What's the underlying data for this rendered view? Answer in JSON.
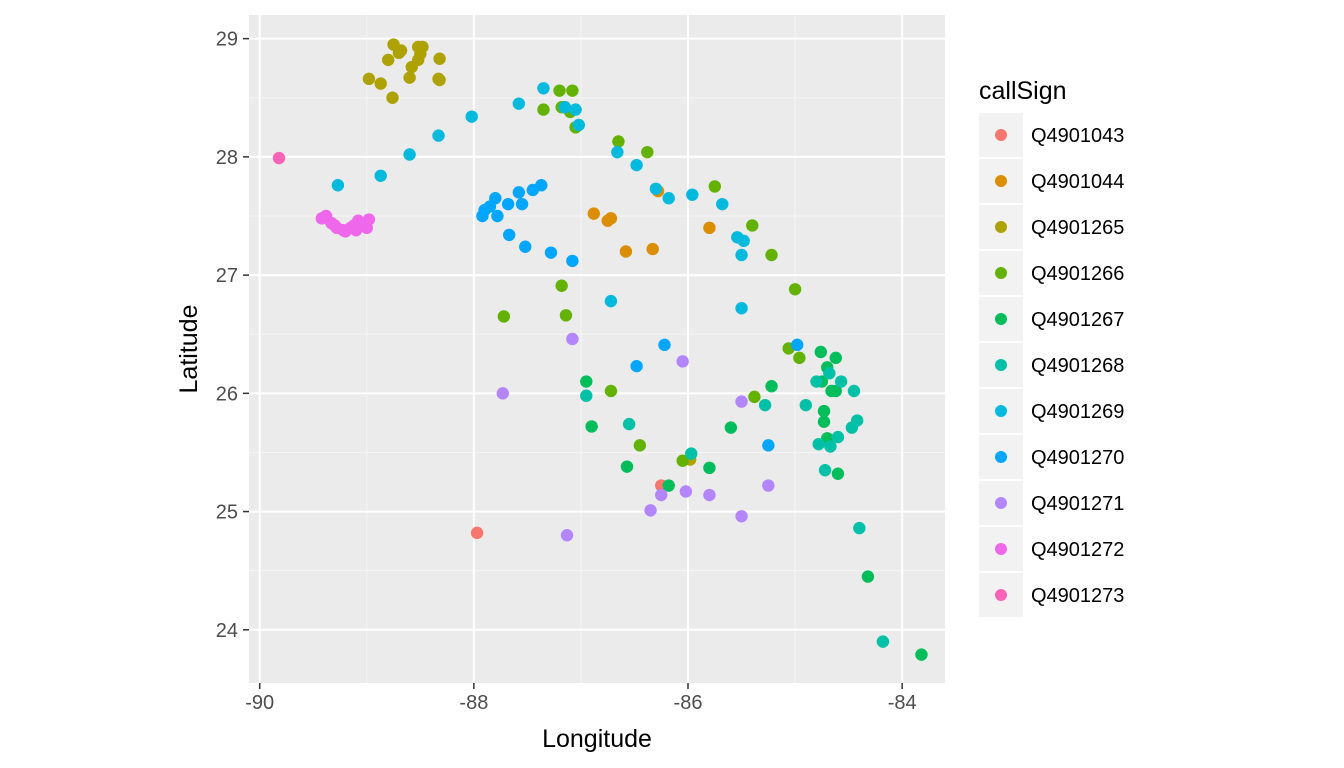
{
  "chart_data": {
    "type": "scatter",
    "xlabel": "Longitude",
    "ylabel": "Latitude",
    "xlim": [
      -90.1,
      -83.6
    ],
    "ylim": [
      23.55,
      29.2
    ],
    "x_ticks": [
      -90,
      -88,
      -86,
      -84
    ],
    "y_ticks": [
      24,
      25,
      26,
      27,
      28,
      29
    ],
    "x_tick_labels": [
      "-90",
      "-88",
      "-86",
      "-84"
    ],
    "y_tick_labels": [
      "24",
      "25",
      "26",
      "27",
      "28",
      "29"
    ],
    "grid": true,
    "panel_background": "#ebebeb",
    "legend": {
      "title": "callSign",
      "position": "right"
    },
    "series": [
      {
        "name": "Q4901043",
        "color": "#F8766D",
        "points": [
          [
            -87.97,
            24.82
          ],
          [
            -86.25,
            25.22
          ]
        ]
      },
      {
        "name": "Q4901044",
        "color": "#DB8E00",
        "points": [
          [
            -86.88,
            27.52
          ],
          [
            -86.75,
            27.46
          ],
          [
            -86.72,
            27.48
          ],
          [
            -86.58,
            27.2
          ],
          [
            -86.33,
            27.22
          ],
          [
            -86.28,
            27.71
          ],
          [
            -85.8,
            27.4
          ]
        ]
      },
      {
        "name": "Q4901265",
        "color": "#AEA200",
        "points": [
          [
            -88.75,
            28.95
          ],
          [
            -88.68,
            28.9
          ],
          [
            -88.7,
            28.88
          ],
          [
            -88.52,
            28.93
          ],
          [
            -88.48,
            28.93
          ],
          [
            -88.5,
            28.87
          ],
          [
            -88.52,
            28.82
          ],
          [
            -88.58,
            28.76
          ],
          [
            -88.6,
            28.67
          ],
          [
            -88.32,
            28.83
          ],
          [
            -88.33,
            28.66
          ],
          [
            -88.32,
            28.65
          ],
          [
            -88.8,
            28.82
          ],
          [
            -88.87,
            28.62
          ],
          [
            -88.98,
            28.66
          ],
          [
            -88.76,
            28.5
          ],
          [
            -85.98,
            25.44
          ]
        ]
      },
      {
        "name": "Q4901266",
        "color": "#64B200",
        "points": [
          [
            -87.2,
            28.56
          ],
          [
            -87.08,
            28.56
          ],
          [
            -87.18,
            28.42
          ],
          [
            -87.15,
            28.42
          ],
          [
            -87.1,
            28.38
          ],
          [
            -87.35,
            28.4
          ],
          [
            -87.05,
            28.25
          ],
          [
            -86.65,
            28.13
          ],
          [
            -86.38,
            28.04
          ],
          [
            -85.75,
            27.75
          ],
          [
            -85.4,
            27.42
          ],
          [
            -85.22,
            27.17
          ],
          [
            -85.0,
            26.88
          ],
          [
            -85.06,
            26.38
          ],
          [
            -84.96,
            26.3
          ],
          [
            -87.18,
            26.91
          ],
          [
            -87.14,
            26.66
          ],
          [
            -87.72,
            26.65
          ],
          [
            -86.72,
            26.02
          ],
          [
            -85.38,
            25.97
          ],
          [
            -86.45,
            25.56
          ],
          [
            -86.05,
            25.43
          ]
        ]
      },
      {
        "name": "Q4901267",
        "color": "#00BD5C",
        "points": [
          [
            -84.76,
            26.35
          ],
          [
            -84.62,
            26.3
          ],
          [
            -84.7,
            26.22
          ],
          [
            -84.75,
            26.1
          ],
          [
            -84.62,
            26.02
          ],
          [
            -84.66,
            26.02
          ],
          [
            -84.73,
            25.85
          ],
          [
            -84.73,
            25.76
          ],
          [
            -84.7,
            25.62
          ],
          [
            -84.6,
            25.32
          ],
          [
            -86.95,
            26.1
          ],
          [
            -86.9,
            25.72
          ],
          [
            -85.6,
            25.71
          ],
          [
            -85.8,
            25.37
          ],
          [
            -86.57,
            25.38
          ],
          [
            -86.18,
            25.22
          ],
          [
            -84.32,
            24.45
          ],
          [
            -83.82,
            23.79
          ],
          [
            -85.22,
            26.06
          ]
        ]
      },
      {
        "name": "Q4901268",
        "color": "#00C1A7",
        "points": [
          [
            -84.68,
            26.17
          ],
          [
            -84.57,
            26.1
          ],
          [
            -84.45,
            26.02
          ],
          [
            -84.8,
            26.1
          ],
          [
            -84.9,
            25.9
          ],
          [
            -85.28,
            25.9
          ],
          [
            -84.78,
            25.57
          ],
          [
            -84.67,
            25.55
          ],
          [
            -84.6,
            25.63
          ],
          [
            -84.47,
            25.71
          ],
          [
            -84.42,
            25.77
          ],
          [
            -84.72,
            25.35
          ],
          [
            -84.4,
            24.86
          ],
          [
            -84.18,
            23.9
          ],
          [
            -86.55,
            25.74
          ],
          [
            -86.95,
            25.98
          ],
          [
            -85.97,
            25.49
          ]
        ]
      },
      {
        "name": "Q4901269",
        "color": "#00BADE",
        "points": [
          [
            -87.35,
            28.58
          ],
          [
            -87.15,
            28.42
          ],
          [
            -87.05,
            28.4
          ],
          [
            -87.02,
            28.27
          ],
          [
            -87.58,
            28.45
          ],
          [
            -88.02,
            28.34
          ],
          [
            -88.33,
            28.18
          ],
          [
            -88.6,
            28.02
          ],
          [
            -88.87,
            27.84
          ],
          [
            -89.27,
            27.76
          ],
          [
            -86.66,
            28.04
          ],
          [
            -86.48,
            27.93
          ],
          [
            -86.3,
            27.73
          ],
          [
            -86.18,
            27.65
          ],
          [
            -85.96,
            27.68
          ],
          [
            -85.68,
            27.6
          ],
          [
            -85.54,
            27.32
          ],
          [
            -85.48,
            27.29
          ],
          [
            -85.5,
            27.17
          ],
          [
            -85.5,
            26.72
          ],
          [
            -86.72,
            26.78
          ]
        ]
      },
      {
        "name": "Q4901270",
        "color": "#00A6FF",
        "points": [
          [
            -87.92,
            27.5
          ],
          [
            -87.9,
            27.55
          ],
          [
            -87.85,
            27.58
          ],
          [
            -87.8,
            27.65
          ],
          [
            -87.78,
            27.5
          ],
          [
            -87.68,
            27.6
          ],
          [
            -87.58,
            27.7
          ],
          [
            -87.55,
            27.6
          ],
          [
            -87.45,
            27.72
          ],
          [
            -87.37,
            27.76
          ],
          [
            -87.67,
            27.34
          ],
          [
            -87.52,
            27.24
          ],
          [
            -87.28,
            27.19
          ],
          [
            -87.08,
            27.12
          ],
          [
            -86.48,
            26.23
          ],
          [
            -86.22,
            26.41
          ],
          [
            -84.98,
            26.41
          ],
          [
            -85.25,
            25.56
          ]
        ]
      },
      {
        "name": "Q4901271",
        "color": "#B385FF",
        "points": [
          [
            -87.08,
            26.46
          ],
          [
            -87.73,
            26.0
          ],
          [
            -86.05,
            26.27
          ],
          [
            -85.5,
            25.93
          ],
          [
            -86.25,
            25.14
          ],
          [
            -86.02,
            25.17
          ],
          [
            -85.8,
            25.14
          ],
          [
            -86.35,
            25.01
          ],
          [
            -85.5,
            24.96
          ],
          [
            -85.25,
            25.22
          ],
          [
            -87.13,
            24.8
          ]
        ]
      },
      {
        "name": "Q4901272",
        "color": "#EF67EB",
        "points": [
          [
            -89.42,
            27.48
          ],
          [
            -89.38,
            27.5
          ],
          [
            -89.33,
            27.44
          ],
          [
            -89.28,
            27.4
          ],
          [
            -89.22,
            27.38
          ],
          [
            -89.15,
            27.4
          ],
          [
            -89.12,
            27.42
          ],
          [
            -89.08,
            27.46
          ],
          [
            -89.05,
            27.43
          ],
          [
            -89.0,
            27.4
          ],
          [
            -88.98,
            27.47
          ],
          [
            -89.3,
            27.42
          ],
          [
            -89.2,
            27.37
          ],
          [
            -89.1,
            27.38
          ]
        ]
      },
      {
        "name": "Q4901273",
        "color": "#FF63B6",
        "points": [
          [
            -89.82,
            27.99
          ]
        ]
      }
    ]
  }
}
